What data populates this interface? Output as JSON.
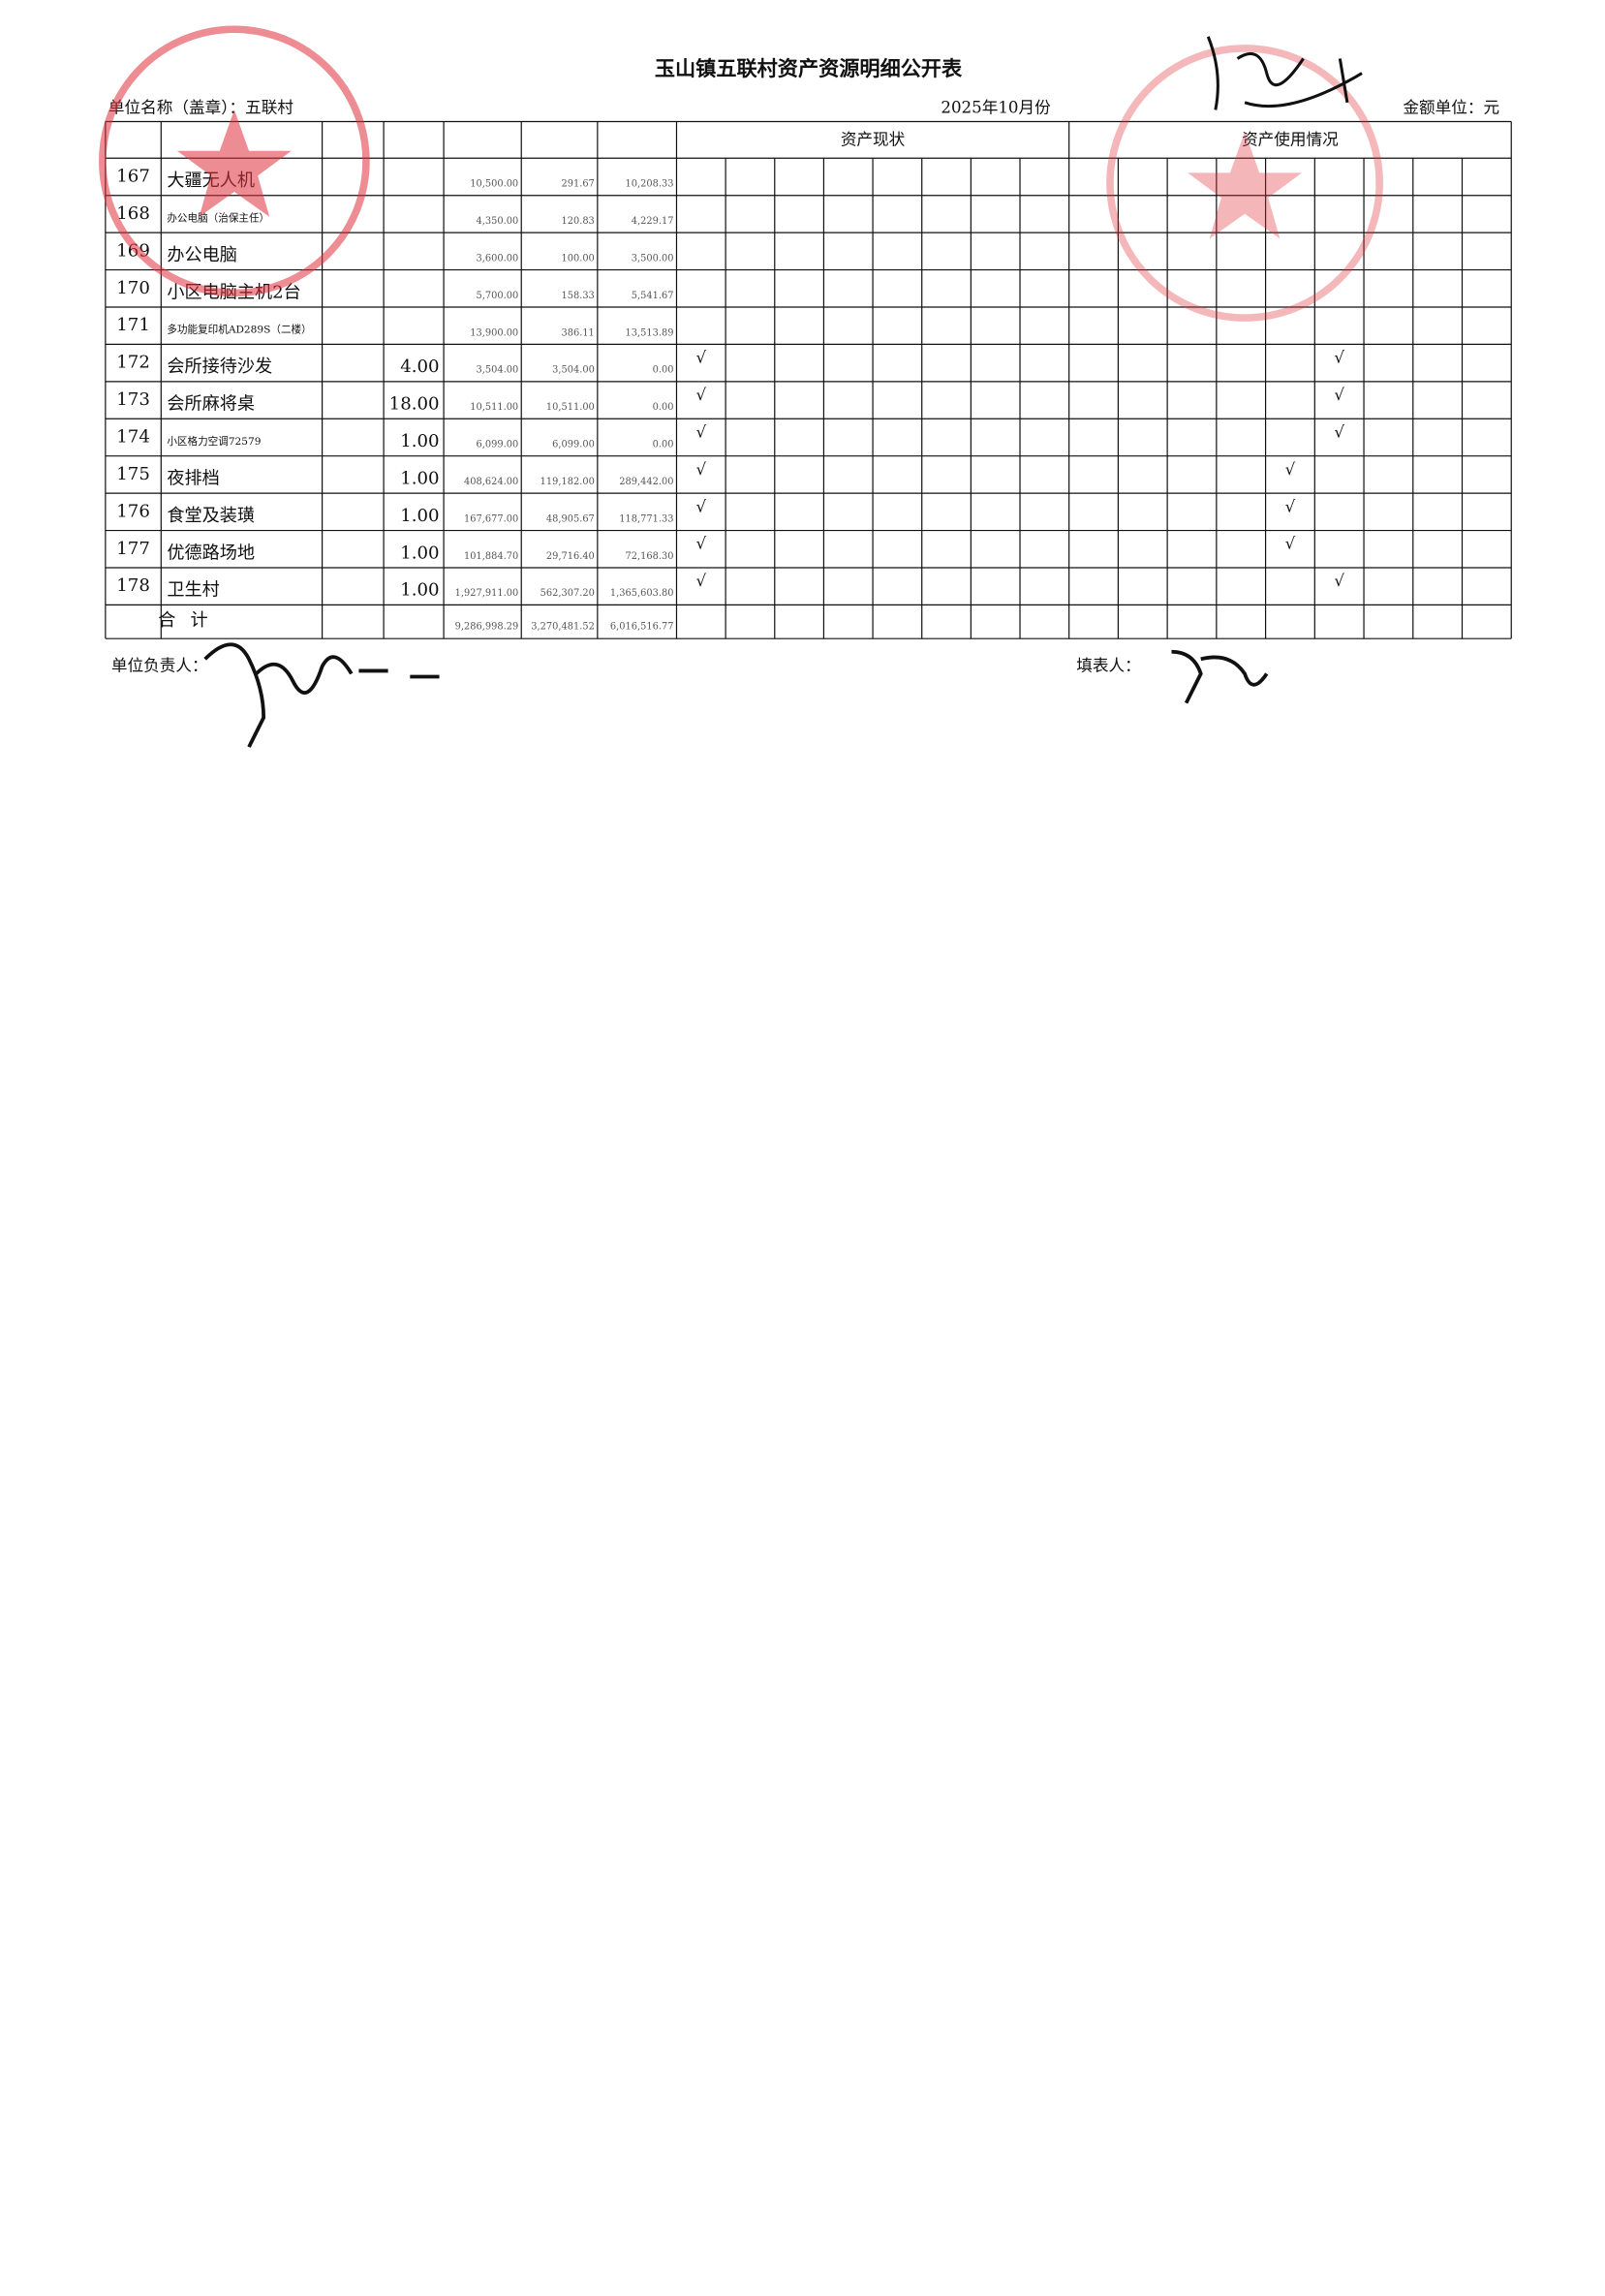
{
  "header": {
    "title": "玉山镇五联村资产资源明细公开表",
    "unit": "单位名称（盖章）：五联村",
    "period": "2025年10月份",
    "currency": "金额单位：元",
    "status_header": "资产现状",
    "usage_header": "资产使用情况"
  },
  "table": {
    "rows": [
      {
        "no": "167",
        "name": "大疆无人机",
        "qty": null,
        "amounts": [
          "10,500.00",
          "291.67",
          "10,208.33"
        ],
        "status": [
          null,
          null,
          null,
          null,
          null,
          null,
          null,
          null
        ],
        "usage": [
          null,
          null,
          null,
          null,
          null,
          null,
          null,
          null,
          null
        ]
      },
      {
        "no": "168",
        "name": "办公电脑（治保主任）",
        "qty": null,
        "amounts": [
          "4,350.00",
          "120.83",
          "4,229.17"
        ],
        "status": [
          null,
          null,
          null,
          null,
          null,
          null,
          null,
          null
        ],
        "usage": [
          null,
          null,
          null,
          null,
          null,
          null,
          null,
          null,
          null
        ]
      },
      {
        "no": "169",
        "name": "办公电脑",
        "qty": null,
        "amounts": [
          "3,600.00",
          "100.00",
          "3,500.00"
        ],
        "status": [
          null,
          null,
          null,
          null,
          null,
          null,
          null,
          null
        ],
        "usage": [
          null,
          null,
          null,
          null,
          null,
          null,
          null,
          null,
          null
        ]
      },
      {
        "no": "170",
        "name": "小区电脑主机2台",
        "qty": null,
        "amounts": [
          "5,700.00",
          "158.33",
          "5,541.67"
        ],
        "status": [
          null,
          null,
          null,
          null,
          null,
          null,
          null,
          null
        ],
        "usage": [
          null,
          null,
          null,
          null,
          null,
          null,
          null,
          null,
          null
        ]
      },
      {
        "no": "171",
        "name": "多功能复印机AD289S（二楼）",
        "qty": null,
        "amounts": [
          "13,900.00",
          "386.11",
          "13,513.89"
        ],
        "status": [
          null,
          null,
          null,
          null,
          null,
          null,
          null,
          null
        ],
        "usage": [
          null,
          null,
          null,
          null,
          null,
          null,
          null,
          null,
          null
        ]
      },
      {
        "no": "172",
        "name": "会所接待沙发",
        "qty": "4.00",
        "amounts": [
          "3,504.00",
          "3,504.00",
          "0.00"
        ],
        "status": [
          "√",
          null,
          null,
          null,
          null,
          null,
          null,
          null
        ],
        "usage": [
          null,
          null,
          null,
          null,
          null,
          "√",
          null,
          null,
          null
        ]
      },
      {
        "no": "173",
        "name": "会所麻将桌",
        "qty": "18.00",
        "amounts": [
          "10,511.00",
          "10,511.00",
          "0.00"
        ],
        "status": [
          "√",
          null,
          null,
          null,
          null,
          null,
          null,
          null
        ],
        "usage": [
          null,
          null,
          null,
          null,
          null,
          "√",
          null,
          null,
          null
        ]
      },
      {
        "no": "174",
        "name": "小区格力空调72579",
        "qty": "1.00",
        "amounts": [
          "6,099.00",
          "6,099.00",
          "0.00"
        ],
        "status": [
          "√",
          null,
          null,
          null,
          null,
          null,
          null,
          null
        ],
        "usage": [
          null,
          null,
          null,
          null,
          null,
          "√",
          null,
          null,
          null
        ]
      },
      {
        "no": "175",
        "name": "夜排档",
        "qty": "1.00",
        "amounts": [
          "408,624.00",
          "119,182.00",
          "289,442.00"
        ],
        "status": [
          "√",
          null,
          null,
          null,
          null,
          null,
          null,
          null
        ],
        "usage": [
          null,
          null,
          null,
          null,
          "√",
          null,
          null,
          null,
          null
        ]
      },
      {
        "no": "176",
        "name": "食堂及装璜",
        "qty": "1.00",
        "amounts": [
          "167,677.00",
          "48,905.67",
          "118,771.33"
        ],
        "status": [
          "√",
          null,
          null,
          null,
          null,
          null,
          null,
          null
        ],
        "usage": [
          null,
          null,
          null,
          null,
          "√",
          null,
          null,
          null,
          null
        ]
      },
      {
        "no": "177",
        "name": "优德路场地",
        "qty": "1.00",
        "amounts": [
          "101,884.70",
          "29,716.40",
          "72,168.30"
        ],
        "status": [
          "√",
          null,
          null,
          null,
          null,
          null,
          null,
          null
        ],
        "usage": [
          null,
          null,
          null,
          null,
          "√",
          null,
          null,
          null,
          null
        ]
      },
      {
        "no": "178",
        "name": "卫生村",
        "qty": "1.00",
        "amounts": [
          "1,927,911.00",
          "562,307.20",
          "1,365,603.80"
        ],
        "status": [
          "√",
          null,
          null,
          null,
          null,
          null,
          null,
          null
        ],
        "usage": [
          null,
          null,
          null,
          null,
          null,
          "√",
          null,
          null,
          null
        ]
      }
    ],
    "total": {
      "label": "合计",
      "amounts": [
        "9,286,998.29",
        "3,270,481.52",
        "6,016,516.77"
      ]
    }
  },
  "footer": {
    "leader": "单位负责人：",
    "preparer": "填表人："
  }
}
